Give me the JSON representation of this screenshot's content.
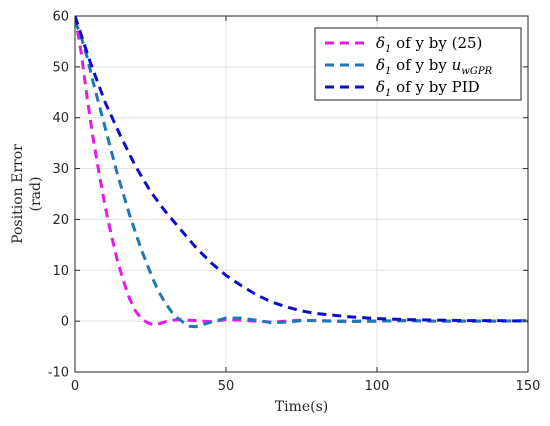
{
  "chart_data": {
    "type": "line",
    "title": "",
    "xlabel": "Time(s)",
    "ylabel_lines": [
      "Position Error",
      "(rad)"
    ],
    "xlim": [
      0,
      150
    ],
    "ylim": [
      -10,
      60
    ],
    "xticks": [
      0,
      50,
      100,
      150
    ],
    "yticks": [
      -10,
      0,
      10,
      20,
      30,
      40,
      50,
      60
    ],
    "grid": true,
    "legend_position": "top-right",
    "series": [
      {
        "name": "δ1 of y by (25)",
        "color": "#e619e6",
        "x": [
          0,
          2,
          4,
          6,
          8,
          10,
          12,
          14,
          16,
          18,
          20,
          22,
          24,
          26,
          28,
          30,
          32,
          35,
          40,
          45,
          50,
          55,
          60,
          65,
          70,
          75,
          80,
          90,
          100,
          110,
          120,
          130,
          140,
          150
        ],
        "y": [
          60,
          53,
          44,
          36,
          29,
          22.5,
          17,
          12,
          8,
          4.5,
          2,
          0.5,
          -0.3,
          -0.7,
          -0.5,
          -0.1,
          0.2,
          0.3,
          0.1,
          -0.1,
          0.3,
          0.2,
          0.0,
          -0.2,
          0.0,
          0.2,
          0.1,
          0.0,
          0.0,
          0.1,
          0.0,
          0.0,
          0.0,
          0.1
        ]
      },
      {
        "name": "δ1 of y by u_wGPR",
        "color": "#1f77b4",
        "x": [
          0,
          2,
          4,
          6,
          8,
          10,
          12,
          14,
          16,
          18,
          20,
          22,
          24,
          26,
          28,
          30,
          32,
          34,
          36,
          38,
          40,
          45,
          50,
          55,
          60,
          65,
          70,
          75,
          80,
          90,
          100,
          110,
          120,
          130,
          140,
          150
        ],
        "y": [
          59,
          56,
          52,
          47,
          42.5,
          38,
          33.5,
          29,
          25,
          21,
          17.5,
          14,
          11,
          8,
          5.5,
          3.5,
          1.8,
          0.6,
          -0.3,
          -1.0,
          -1.1,
          -0.2,
          0.6,
          0.6,
          0.2,
          -0.3,
          -0.2,
          0.1,
          0.1,
          -0.1,
          0.0,
          0.1,
          0.0,
          0.0,
          0.0,
          0.1
        ]
      },
      {
        "name": "δ1 of y by PID",
        "color": "#0d0dcc",
        "x": [
          0,
          5,
          10,
          15,
          20,
          25,
          30,
          35,
          40,
          45,
          50,
          55,
          60,
          65,
          70,
          75,
          80,
          90,
          100,
          110,
          120,
          130,
          140,
          150
        ],
        "y": [
          60,
          51,
          43,
          36.5,
          30.5,
          25.5,
          21.5,
          18,
          14.5,
          11.5,
          9,
          7,
          5.2,
          3.8,
          2.8,
          2.0,
          1.5,
          0.9,
          0.5,
          0.3,
          0.2,
          0.1,
          0.1,
          0.0
        ]
      }
    ],
    "legend_entries": [
      {
        "prefix": "δ",
        "sub": "1",
        "text": " of y by (25)"
      },
      {
        "prefix": "δ",
        "sub": "1",
        "text": " of y by ",
        "italic": "u",
        "italic_sub": "wGPR"
      },
      {
        "prefix": "δ",
        "sub": "1",
        "text": " of y by PID"
      }
    ]
  }
}
